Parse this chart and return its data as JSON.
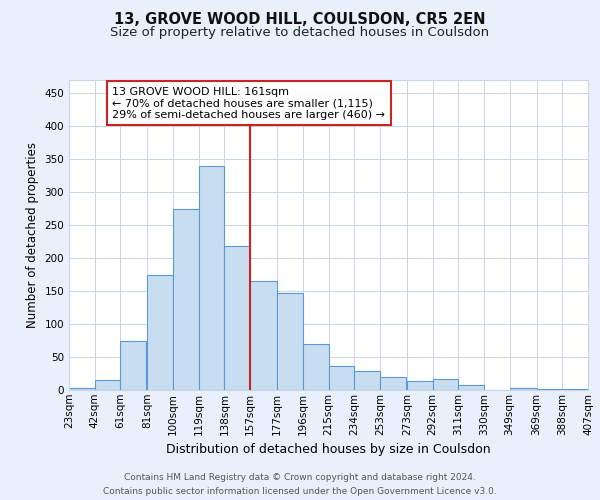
{
  "title1": "13, GROVE WOOD HILL, COULSDON, CR5 2EN",
  "title2": "Size of property relative to detached houses in Coulsdon",
  "xlabel": "Distribution of detached houses by size in Coulsdon",
  "ylabel": "Number of detached properties",
  "bar_left_edges": [
    23,
    42,
    61,
    81,
    100,
    119,
    138,
    157,
    177,
    196,
    215,
    234,
    253,
    273,
    292,
    311,
    330,
    349,
    369,
    388
  ],
  "bar_widths": [
    19,
    19,
    19,
    19,
    19,
    19,
    19,
    20,
    19,
    19,
    19,
    19,
    19,
    19,
    19,
    19,
    19,
    20,
    19,
    19
  ],
  "bar_heights": [
    3,
    15,
    75,
    175,
    275,
    340,
    218,
    165,
    147,
    70,
    37,
    29,
    19,
    13,
    16,
    7,
    0,
    3,
    1,
    1
  ],
  "bar_facecolor": "#c9ddf0",
  "bar_edgecolor": "#5b9bd5",
  "grid_color": "#c8d4e8",
  "plot_bg_color": "#ffffff",
  "fig_bg_color": "#eaf0fb",
  "vline_x": 157,
  "vline_color": "#cc2222",
  "annotation_text": "13 GROVE WOOD HILL: 161sqm\n← 70% of detached houses are smaller (1,115)\n29% of semi-detached houses are larger (460) →",
  "annotation_box_edgecolor": "#cc2222",
  "annotation_box_facecolor": "#ffffff",
  "tick_labels": [
    "23sqm",
    "42sqm",
    "61sqm",
    "81sqm",
    "100sqm",
    "119sqm",
    "138sqm",
    "157sqm",
    "177sqm",
    "196sqm",
    "215sqm",
    "234sqm",
    "253sqm",
    "273sqm",
    "292sqm",
    "311sqm",
    "330sqm",
    "349sqm",
    "369sqm",
    "388sqm",
    "407sqm"
  ],
  "ylim": [
    0,
    470
  ],
  "yticks": [
    0,
    50,
    100,
    150,
    200,
    250,
    300,
    350,
    400,
    450
  ],
  "xlim_left": 23,
  "xlim_right": 407,
  "title1_fontsize": 10.5,
  "title2_fontsize": 9.5,
  "axis_label_fontsize": 9,
  "tick_fontsize": 7.5,
  "ylabel_fontsize": 8.5,
  "footer_text1": "Contains HM Land Registry data © Crown copyright and database right 2024.",
  "footer_text2": "Contains public sector information licensed under the Open Government Licence v3.0."
}
